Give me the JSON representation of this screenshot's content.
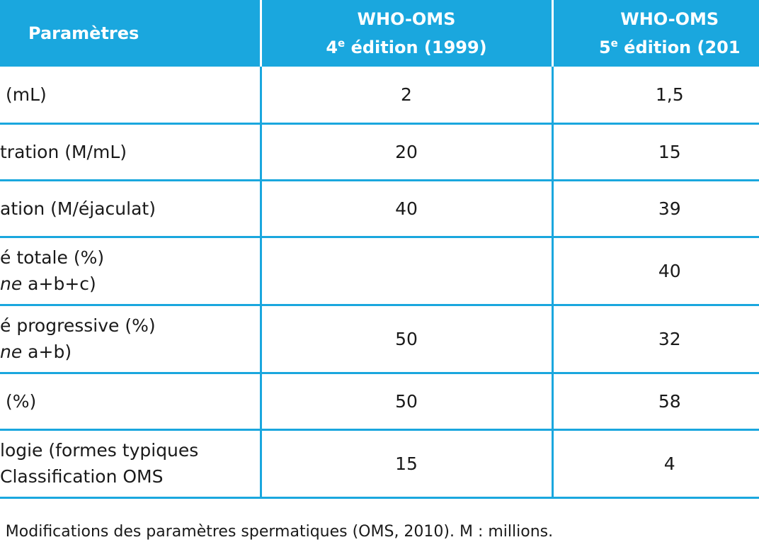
{
  "header": {
    "col1": "Paramètres",
    "col2_line1": "WHO-OMS",
    "col2_ed_num": "4",
    "col2_ed_sup": "e",
    "col2_ed_rest": " édition (1999)",
    "col3_line1": "WHO-OMS",
    "col3_ed_num": "5",
    "col3_ed_sup": "e",
    "col3_ed_rest": " édition (201"
  },
  "rows": [
    {
      "line1": "(mL)",
      "v4": "2",
      "v5": "1,5"
    },
    {
      "line1": "tration (M/mL)",
      "v4": "20",
      "v5": "15"
    },
    {
      "line1": "ation (M/éjaculat)",
      "v4": "40",
      "v5": "39"
    },
    {
      "line1": "é totale (%)",
      "line2_it": "ne",
      "line2": " a+b+c)",
      "v4": "",
      "v5": "40"
    },
    {
      "line1": "é progressive (%)",
      "line2_it": "ne",
      "line2": " a+b)",
      "v4": "50",
      "v5": "32"
    },
    {
      "line1": "(%)",
      "v4": "50",
      "v5": "58"
    },
    {
      "line1": "logie (formes typiques",
      "line2": "Classification OMS",
      "v4": "15",
      "v5": "4"
    }
  ],
  "caption": {
    "prefix": ":",
    "text": " Modifications des paramètres spermatiques (OMS, 2010). M : millions."
  }
}
